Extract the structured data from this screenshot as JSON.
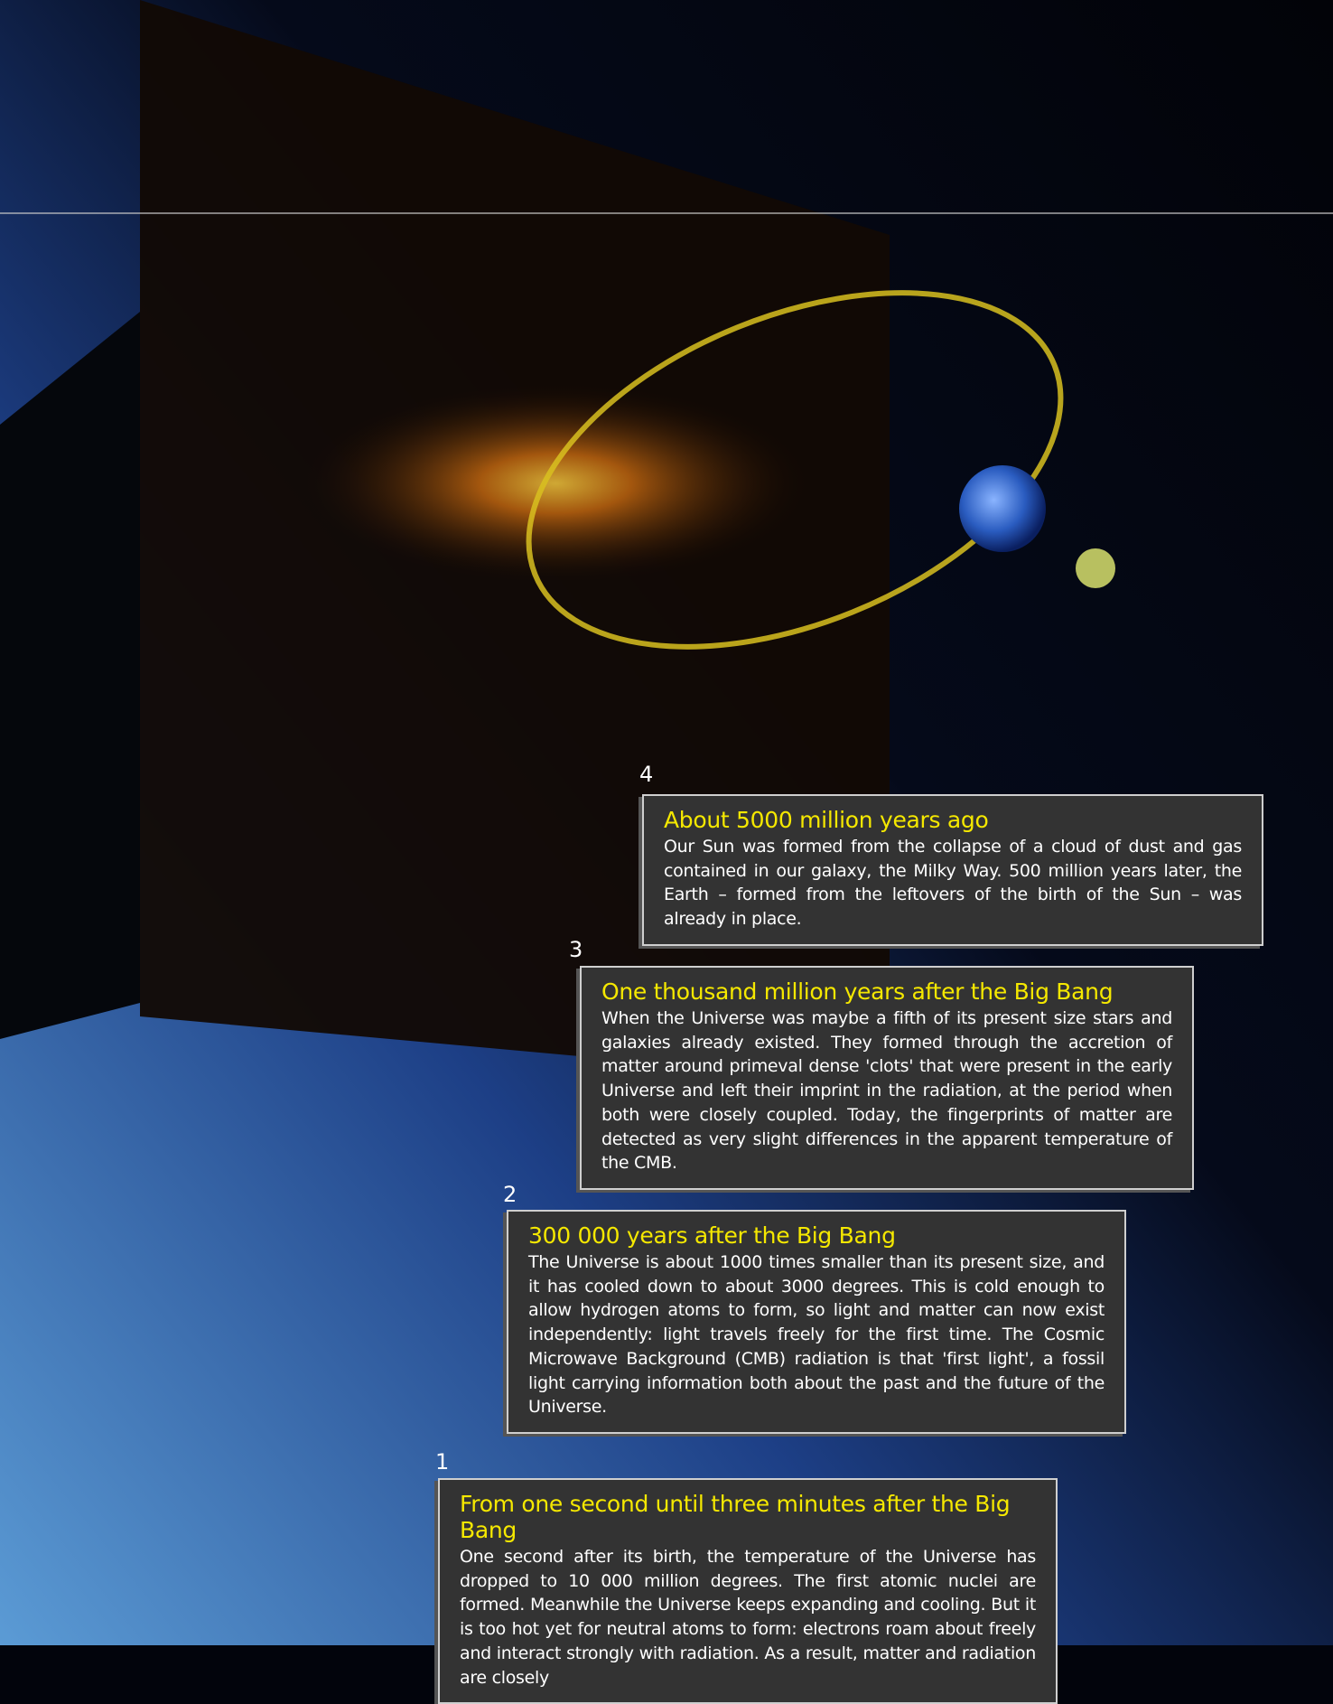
{
  "steps": [
    {
      "number": "4",
      "title": "About 5000 million years ago",
      "text": "Our Sun was formed from the collapse of a cloud of dust and gas contained in our galaxy, the Milky Way. 500 million years later, the Earth – formed from the leftovers of the birth of the Sun – was already in place."
    },
    {
      "number": "3",
      "title": "One thousand million years after the Big Bang",
      "text": "When the Universe was maybe a fifth of its present size stars and galaxies already existed. They formed through the accretion of matter around primeval dense 'clots' that were present in the early Universe and left their imprint in the radiation, at the period when both were closely coupled. Today, the fingerprints of matter are detected as very slight differences in the apparent temperature of the CMB."
    },
    {
      "number": "2",
      "title": "300 000 years after the Big Bang",
      "text": "The Universe is about 1000 times smaller than its present size, and it has cooled down to about 3000 degrees. This is cold enough to allow hydrogen atoms to form, so light and matter can now exist independently: light travels freely for the first time. The Cosmic Microwave Background (CMB) radiation is that 'first light', a fossil light carrying information both about the past and the future of the Universe."
    },
    {
      "number": "1",
      "title": "From one second until three minutes after the Big Bang",
      "text": "One second after its birth, the temperature of the Universe has dropped to 10 000 million degrees. The first atomic nuclei are formed. Meanwhile the Universe keeps expanding and cooling. But it is too hot yet for neutral atoms to form: electrons roam about freely and interact strongly with radiation. As a result, matter and radiation are closely"
    }
  ]
}
